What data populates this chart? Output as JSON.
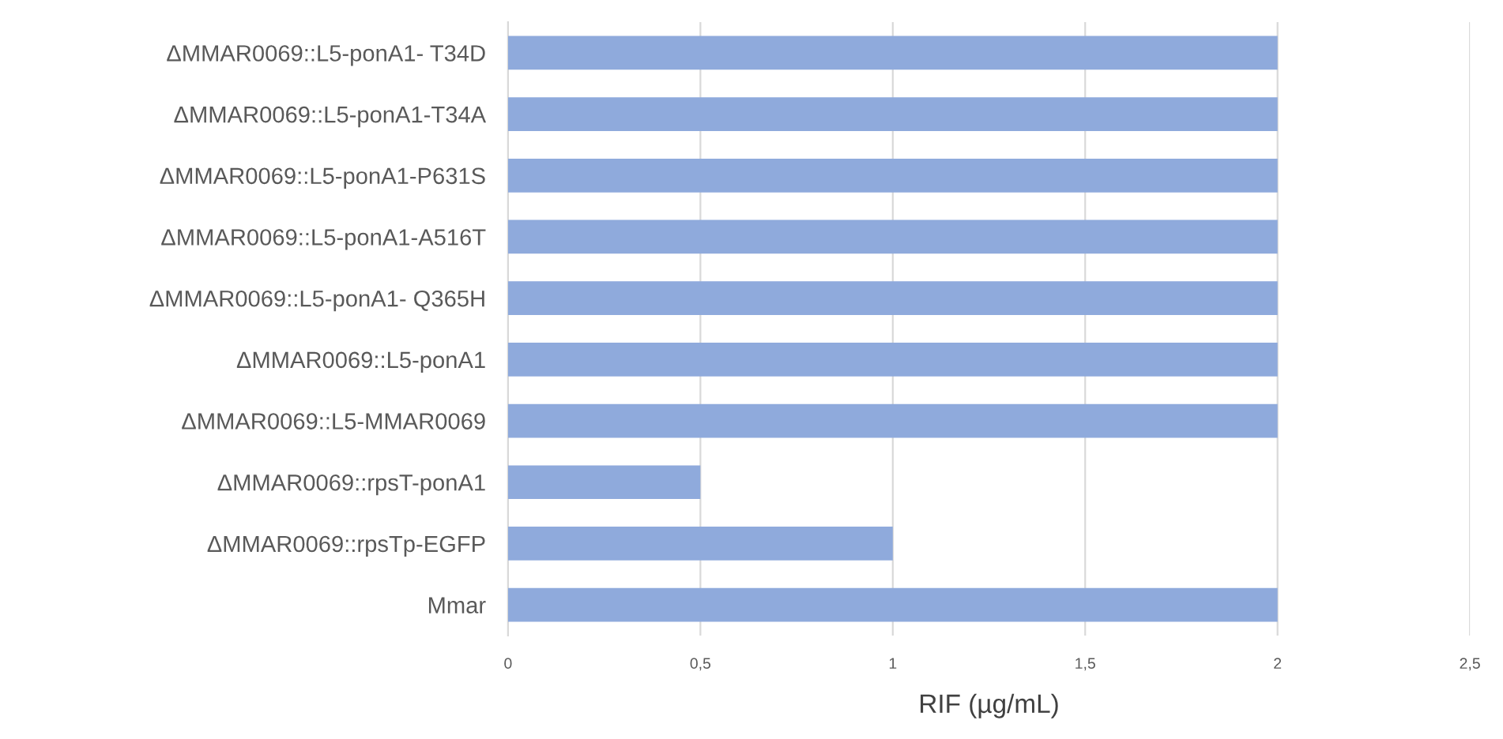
{
  "chart_data": {
    "type": "bar",
    "orientation": "horizontal",
    "xlabel": "RIF (µg/mL)",
    "categories": [
      "ΔMMAR0069::L5-ponA1- T34D",
      "ΔMMAR0069::L5-ponA1-T34A",
      "ΔMMAR0069::L5-ponA1-P631S",
      "ΔMMAR0069::L5-ponA1-A516T",
      "ΔMMAR0069::L5-ponA1- Q365H",
      "ΔMMAR0069::L5-ponA1",
      "ΔMMAR0069::L5-MMAR0069",
      "ΔMMAR0069::rpsT-ponA1",
      "ΔMMAR0069::rpsTp-EGFP",
      "Mmar"
    ],
    "values": [
      2,
      2,
      2,
      2,
      2,
      2,
      2,
      0.5,
      1,
      2
    ],
    "color": "#8faadc",
    "xlim": [
      0,
      2.5
    ],
    "xticks": [
      0,
      {
        "value": 0.5,
        "label": "0,5"
      },
      1,
      {
        "value": 1.5,
        "label": "1,5"
      },
      2,
      {
        "value": 2.5,
        "label": "2,5"
      }
    ],
    "grid": "x",
    "legend": false
  }
}
